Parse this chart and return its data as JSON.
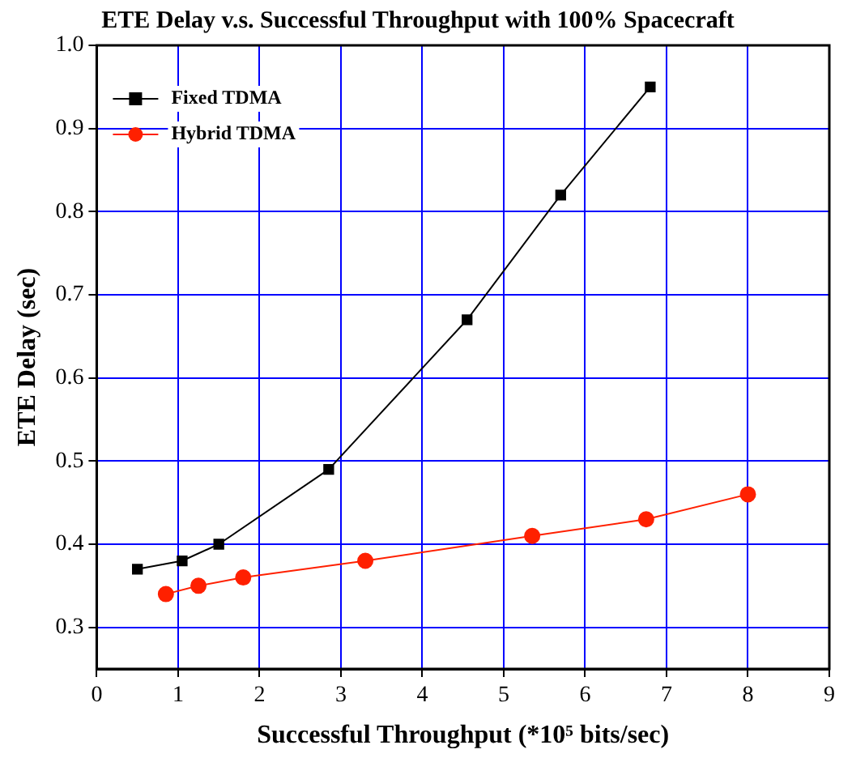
{
  "chart_data": {
    "type": "line",
    "title": "ETE Delay v.s. Successful Throughput with 100% Spacecraft",
    "xlabel": "Successful Throughput (*10⁵ bits/sec)",
    "ylabel": "ETE Delay (sec)",
    "xlim": [
      0,
      9
    ],
    "xticks": [
      0,
      1,
      2,
      3,
      4,
      5,
      6,
      7,
      8,
      9
    ],
    "ylim": [
      0.25,
      1.0
    ],
    "yticks": [
      0.3,
      0.4,
      0.5,
      0.6,
      0.7,
      0.8,
      0.9,
      {
        "value": 1.0,
        "label": "1.0"
      }
    ],
    "grid": true,
    "legend": "top left",
    "line_style": "solid",
    "series": [
      {
        "name": "Fixed TDMA",
        "color": "#000000",
        "marker": "square",
        "x": [
          0.5,
          1.05,
          1.5,
          2.85,
          4.55,
          5.7,
          6.8
        ],
        "values": [
          0.37,
          0.38,
          0.4,
          0.49,
          0.67,
          0.82,
          0.95
        ]
      },
      {
        "name": "Hybrid TDMA",
        "color": "#ff2000",
        "marker": "circle",
        "x": [
          0.85,
          1.25,
          1.8,
          3.3,
          5.35,
          6.75,
          8.0
        ],
        "values": [
          0.34,
          0.35,
          0.36,
          0.38,
          0.41,
          0.43,
          0.46
        ]
      }
    ]
  }
}
